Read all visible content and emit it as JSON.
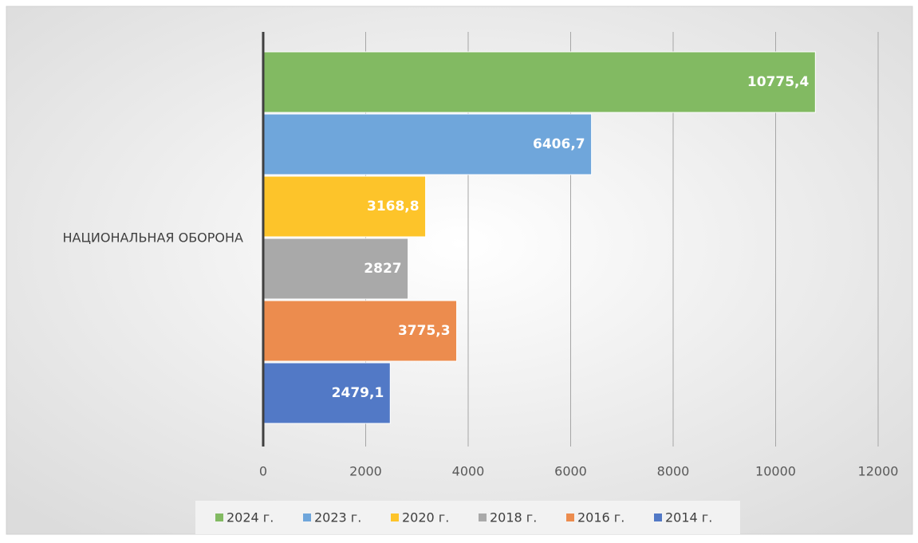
{
  "chart_data": {
    "type": "barh",
    "categories": [
      "НАЦИОНАЛЬНАЯ ОБОРОНА"
    ],
    "series": [
      {
        "name": "2024 г.",
        "color": "#82ba62",
        "values": [
          10775.4
        ],
        "value_labels": [
          "10775,4"
        ]
      },
      {
        "name": "2023 г.",
        "color": "#6fa6db",
        "values": [
          6406.7
        ],
        "value_labels": [
          "6406,7"
        ]
      },
      {
        "name": "2020 г.",
        "color": "#fdc42a",
        "values": [
          3168.8
        ],
        "value_labels": [
          "3168,8"
        ]
      },
      {
        "name": "2018 г.",
        "color": "#a9a9a9",
        "values": [
          2827
        ],
        "value_labels": [
          "2827"
        ]
      },
      {
        "name": "2016 г.",
        "color": "#ec8c4e",
        "values": [
          3775.3
        ],
        "value_labels": [
          "3775,3"
        ]
      },
      {
        "name": "2014 г.",
        "color": "#5279c6",
        "values": [
          2479.1
        ],
        "value_labels": [
          "2479,1"
        ]
      }
    ],
    "xlim": [
      0,
      12000
    ],
    "xticks": [
      0,
      2000,
      4000,
      6000,
      8000,
      10000,
      12000
    ],
    "grid": true,
    "legend": "bottom"
  }
}
